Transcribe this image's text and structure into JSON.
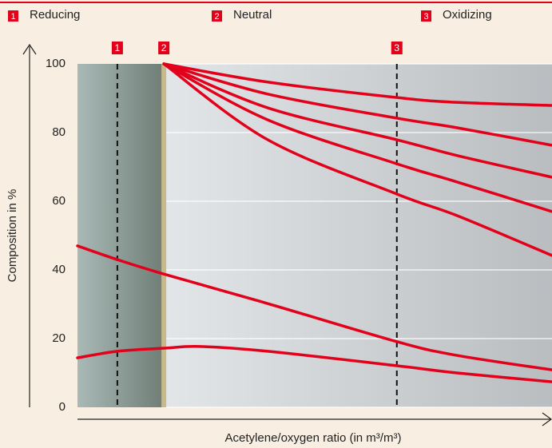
{
  "chart_data": {
    "type": "line",
    "legend": [
      {
        "number": "1",
        "name": "Reducing"
      },
      {
        "number": "2",
        "name": "Neutral"
      },
      {
        "number": "3",
        "name": "Oxidizing"
      }
    ],
    "ylabel": "Composition in %",
    "xlabel": "Acetylene/oxygen ratio (in m³/m³)",
    "xlim": [
      0,
      10
    ],
    "ylim": [
      0,
      100
    ],
    "yticks": [
      0,
      20,
      40,
      60,
      80,
      100
    ],
    "grid": true,
    "markers": [
      {
        "x": 0.84,
        "label": "1",
        "style": "dashed"
      },
      {
        "x": 1.82,
        "label": "2",
        "style": "solid"
      },
      {
        "x": 6.73,
        "label": "3",
        "style": "dashed"
      }
    ],
    "series": [
      {
        "color": "#e2001a",
        "x": [
          1.82,
          4.01,
          6.73,
          8.0,
          10
        ],
        "values": [
          100,
          94.7,
          90.2,
          88.8,
          87.9
        ]
      },
      {
        "color": "#e2001a",
        "x": [
          1.82,
          4.01,
          6.73,
          8.0,
          10
        ],
        "values": [
          100,
          91.2,
          84.2,
          81.4,
          76.3
        ]
      },
      {
        "color": "#e2001a",
        "x": [
          1.82,
          4.01,
          6.73,
          8.0,
          10
        ],
        "values": [
          100,
          87.2,
          77.9,
          73.3,
          67
        ]
      },
      {
        "color": "#e2001a",
        "x": [
          1.82,
          4.01,
          6.73,
          8.0,
          10
        ],
        "values": [
          100,
          83.7,
          70.9,
          65.6,
          57
        ]
      },
      {
        "color": "#e2001a",
        "x": [
          1.82,
          4.01,
          6.73,
          8.0,
          10
        ],
        "values": [
          100,
          77.9,
          62.1,
          55.8,
          44.2
        ]
      },
      {
        "color": "#e2001a",
        "x": [
          0,
          0.84,
          1.82,
          4.01,
          6.73,
          8.0,
          10
        ],
        "values": [
          47,
          43,
          38.8,
          30.2,
          19.1,
          15.1,
          10.9
        ]
      },
      {
        "color": "#e2001a",
        "x": [
          0,
          0.84,
          1.82,
          2.58,
          4.01,
          6.73,
          8.0,
          10
        ],
        "values": [
          14.4,
          16.3,
          17.2,
          17.7,
          16.3,
          12.1,
          10,
          7.4
        ]
      }
    ]
  }
}
